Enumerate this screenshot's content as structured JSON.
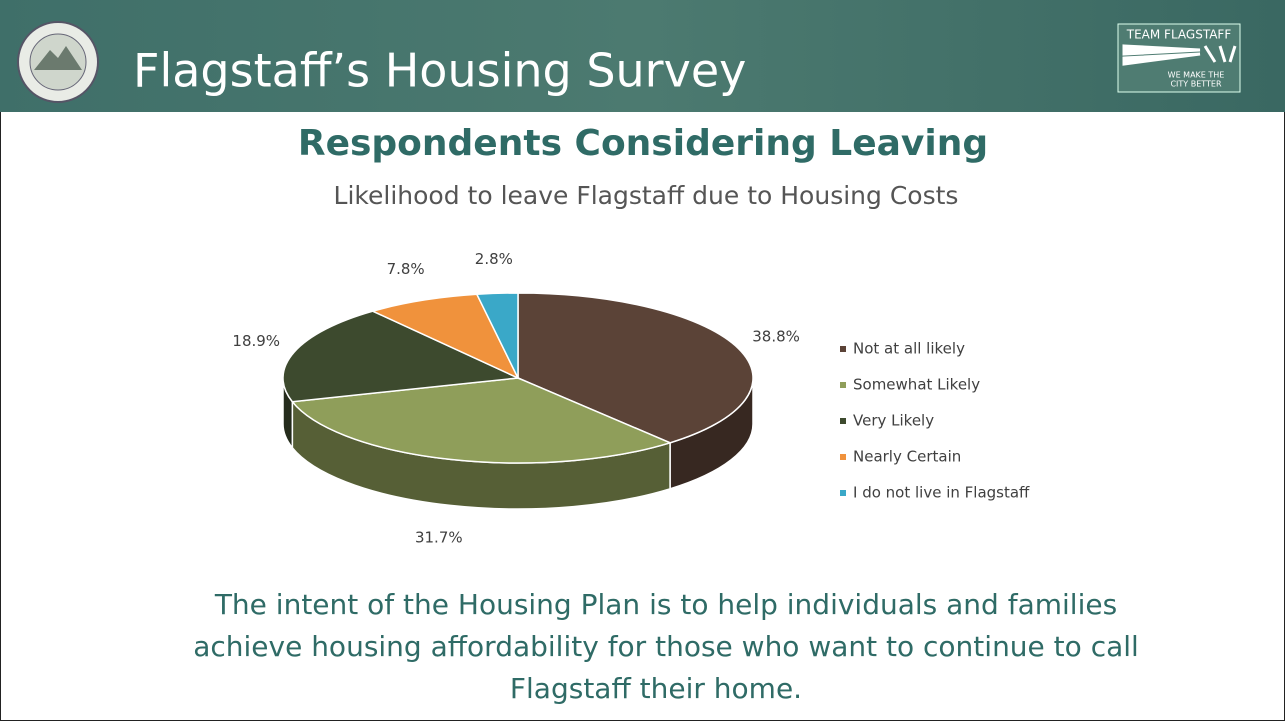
{
  "header": {
    "title": "Flagstaff’s Housing Survey",
    "logo_top": "TEAM FLAGSTAFF",
    "logo_bottom": [
      "WE MAKE THE",
      "CITY BETTER"
    ]
  },
  "heading": "Respondents Considering Leaving",
  "chart_data": {
    "type": "pie",
    "title": "Likelihood to leave Flagstaff due to Housing Costs",
    "categories": [
      "Not at all likely",
      "Somewhat Likely",
      "Very Likely",
      "Nearly Certain",
      "I do not live in Flagstaff"
    ],
    "values": [
      38.8,
      31.7,
      18.9,
      7.8,
      2.8
    ],
    "value_labels": [
      "38.8%",
      "31.7%",
      "18.9%",
      "7.8%",
      "2.8%"
    ],
    "colors": [
      "#5b4337",
      "#8f9e5a",
      "#3d4a2e",
      "#f0923c",
      "#3aa8c8"
    ],
    "legend": "right"
  },
  "footer_lines": [
    "The intent of the Housing Plan is to help individuals and families",
    "achieve housing affordability for those who want to continue to call",
    "Flagstaff their home."
  ]
}
